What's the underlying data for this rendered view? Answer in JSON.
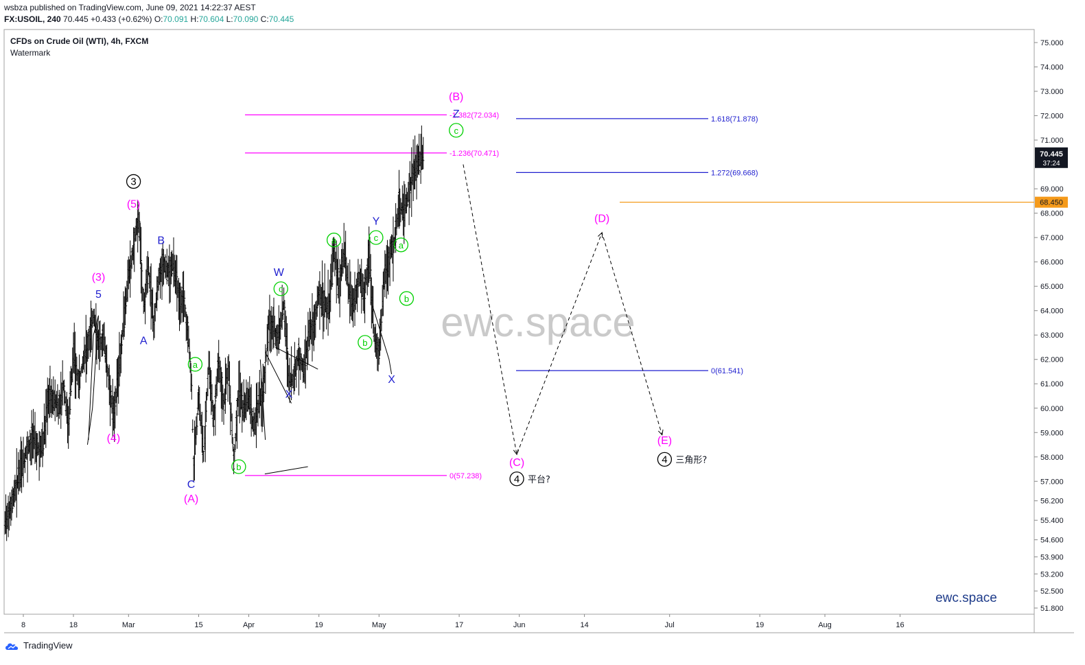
{
  "header": {
    "published": "wsbza published on TradingView.com, June 09, 2021 14:22:37 AEST",
    "symbol": "FX:USOIL, 240",
    "last": "70.445",
    "change": "+0.433 (+0.62%)",
    "o_label": "O:",
    "o": "70.091",
    "h_label": "H:",
    "h": "70.604",
    "l_label": "L:",
    "l": "70.090",
    "c_label": "C:",
    "c": "70.445"
  },
  "legend": {
    "title": "CFDs on Crude Oil (WTI), 4h, FXCM",
    "subtitle": "Watermark"
  },
  "watermark": "ewc.space",
  "brand_label": "ewc.space",
  "footer": {
    "logo_text": "TradingView",
    "logo_icon": "tradingview-cloud-icon"
  },
  "colors": {
    "candle": "#000000",
    "magenta": "#ff00ff",
    "blue": "#1f1fcf",
    "green": "#00d000",
    "orange": "#f59a1b",
    "grid": "#e6e6e6"
  },
  "chart_data": {
    "type": "line",
    "title": "CFDs on Crude Oil (WTI), 4h, FXCM",
    "ylim": [
      51.4,
      75.4
    ],
    "y_ticks": [
      {
        "v": 75.0,
        "label": "75.000"
      },
      {
        "v": 74.0,
        "label": "74.000"
      },
      {
        "v": 73.0,
        "label": "73.000"
      },
      {
        "v": 72.0,
        "label": "72.000"
      },
      {
        "v": 71.0,
        "label": "71.000"
      },
      {
        "v": 69.0,
        "label": "69.000"
      },
      {
        "v": 68.0,
        "label": "68.000"
      },
      {
        "v": 67.0,
        "label": "67.000"
      },
      {
        "v": 66.0,
        "label": "66.000"
      },
      {
        "v": 65.0,
        "label": "65.000"
      },
      {
        "v": 64.0,
        "label": "64.000"
      },
      {
        "v": 63.0,
        "label": "63.000"
      },
      {
        "v": 62.0,
        "label": "62.000"
      },
      {
        "v": 61.0,
        "label": "61.000"
      },
      {
        "v": 60.0,
        "label": "60.000"
      },
      {
        "v": 59.0,
        "label": "59.000"
      },
      {
        "v": 58.0,
        "label": "58.000"
      },
      {
        "v": 57.0,
        "label": "57.000"
      },
      {
        "v": 56.2,
        "label": "56.200"
      },
      {
        "v": 55.4,
        "label": "55.400"
      },
      {
        "v": 54.6,
        "label": "54.600"
      },
      {
        "v": 53.9,
        "label": "53.900"
      },
      {
        "v": 53.2,
        "label": "53.200"
      },
      {
        "v": 52.5,
        "label": "52.500"
      },
      {
        "v": 51.8,
        "label": "51.800"
      }
    ],
    "x_ticks": [
      {
        "d": 0,
        "label": "8"
      },
      {
        "d": 10,
        "label": "18"
      },
      {
        "d": 21,
        "label": "Mar"
      },
      {
        "d": 35,
        "label": "15"
      },
      {
        "d": 45,
        "label": "Apr"
      },
      {
        "d": 59,
        "label": "19"
      },
      {
        "d": 71,
        "label": "May"
      },
      {
        "d": 87,
        "label": "17"
      },
      {
        "d": 99,
        "label": "Jun"
      },
      {
        "d": 112,
        "label": "14"
      },
      {
        "d": 129,
        "label": "Jul"
      },
      {
        "d": 147,
        "label": "19"
      },
      {
        "d": 160,
        "label": "Aug"
      },
      {
        "d": 175,
        "label": "16"
      }
    ],
    "price_path": [
      [
        -4,
        55.0
      ],
      [
        -2,
        56.4
      ],
      [
        0,
        57.8
      ],
      [
        1,
        58.4
      ],
      [
        2,
        58.8
      ],
      [
        3,
        58.3
      ],
      [
        4,
        58.6
      ],
      [
        5,
        60.6
      ],
      [
        7,
        60.1
      ],
      [
        8,
        60.9
      ],
      [
        9,
        59.4
      ],
      [
        10,
        62.3
      ],
      [
        11,
        61.0
      ],
      [
        12,
        62.0
      ],
      [
        13,
        62.8
      ],
      [
        14,
        63.8
      ],
      [
        15,
        62.6
      ],
      [
        16,
        62.9
      ],
      [
        17,
        61.3
      ],
      [
        18,
        59.7
      ],
      [
        19,
        61.4
      ],
      [
        20,
        63.4
      ],
      [
        21,
        65.4
      ],
      [
        22,
        66.6
      ],
      [
        23,
        67.9
      ],
      [
        24,
        64.2
      ],
      [
        25,
        65.7
      ],
      [
        26,
        63.5
      ],
      [
        27,
        65.3
      ],
      [
        28,
        66.1
      ],
      [
        29,
        65.5
      ],
      [
        30,
        65.9
      ],
      [
        31,
        64.6
      ],
      [
        32,
        64.5
      ],
      [
        33,
        62.8
      ],
      [
        33.6,
        60.9
      ],
      [
        34,
        57.7
      ],
      [
        35,
        60.4
      ],
      [
        36,
        58.1
      ],
      [
        37,
        61.9
      ],
      [
        38,
        59.5
      ],
      [
        39,
        62.0
      ],
      [
        40,
        60.2
      ],
      [
        41,
        61.7
      ],
      [
        42,
        57.8
      ],
      [
        43,
        60.8
      ],
      [
        44,
        59.9
      ],
      [
        45,
        60.3
      ],
      [
        46,
        59.2
      ],
      [
        47,
        60.2
      ],
      [
        48,
        60.8
      ],
      [
        49,
        63.6
      ],
      [
        50,
        63.2
      ],
      [
        51,
        62.9
      ],
      [
        52,
        64.3
      ],
      [
        53,
        61.1
      ],
      [
        54,
        61.2
      ],
      [
        55,
        62.2
      ],
      [
        56,
        61.5
      ],
      [
        57,
        63.0
      ],
      [
        58,
        63.4
      ],
      [
        59,
        64.7
      ],
      [
        60,
        64.3
      ],
      [
        61,
        64.1
      ],
      [
        62,
        66.5
      ],
      [
        63,
        65.0
      ],
      [
        64,
        66.3
      ],
      [
        65,
        64.8
      ],
      [
        66,
        64.2
      ],
      [
        67,
        65.4
      ],
      [
        68,
        64.6
      ],
      [
        69,
        66.3
      ],
      [
        70,
        63.1
      ],
      [
        71,
        62.1
      ],
      [
        72,
        65.2
      ],
      [
        73,
        66.2
      ],
      [
        74,
        66.8
      ],
      [
        75,
        68.3
      ],
      [
        76,
        68.0
      ],
      [
        77,
        68.9
      ],
      [
        78,
        69.7
      ],
      [
        79,
        70.1
      ],
      [
        80,
        70.4
      ]
    ],
    "fib_levels": [
      {
        "label": "-1.382(72.034)",
        "v": 72.034,
        "group": "left"
      },
      {
        "label": "-1.236(70.471)",
        "v": 70.471,
        "group": "left"
      },
      {
        "label": "0(57.238)",
        "v": 57.238,
        "group": "left"
      },
      {
        "label": "1.618(71.878)",
        "v": 71.878,
        "group": "right"
      },
      {
        "label": "1.272(69.668)",
        "v": 69.668,
        "group": "right"
      },
      {
        "label": "0(61.541)",
        "v": 61.541,
        "group": "right"
      }
    ],
    "current_price": {
      "v": 70.445,
      "label": "70.445",
      "countdown": "37:24"
    },
    "horizontal_line": {
      "v": 68.45,
      "label": "68.450"
    },
    "wave_labels": [
      {
        "text": "3",
        "circled": true,
        "color": "#000000",
        "d": 22,
        "v": 69.3
      },
      {
        "text": "(5)",
        "color": "#ff00ff",
        "d": 22,
        "v": 68.4
      },
      {
        "text": "B",
        "color": "#1f1fcf",
        "d": 27.5,
        "v": 66.9
      },
      {
        "text": "(3)",
        "color": "#ff00ff",
        "d": 15,
        "v": 65.4
      },
      {
        "text": "5",
        "color": "#1f1fcf",
        "d": 15,
        "v": 64.7
      },
      {
        "text": "A",
        "color": "#1f1fcf",
        "d": 24,
        "v": 62.8
      },
      {
        "text": "(4)",
        "color": "#ff00ff",
        "d": 18,
        "v": 58.8
      },
      {
        "text": "C",
        "color": "#1f1fcf",
        "d": 33.5,
        "v": 56.9
      },
      {
        "text": "(A)",
        "color": "#ff00ff",
        "d": 33.5,
        "v": 56.3
      },
      {
        "text": "a",
        "circled": true,
        "color": "#00d000",
        "d": 34.3,
        "v": 61.8
      },
      {
        "text": "b",
        "circled": true,
        "color": "#00d000",
        "d": 43,
        "v": 57.6
      },
      {
        "text": "W",
        "color": "#1f1fcf",
        "d": 51,
        "v": 65.6
      },
      {
        "text": "c",
        "circled": true,
        "color": "#00d000",
        "d": 51.4,
        "v": 64.9
      },
      {
        "text": "X",
        "color": "#1f1fcf",
        "d": 53,
        "v": 60.6
      },
      {
        "text": "a",
        "circled": true,
        "color": "#00d000",
        "d": 62,
        "v": 66.9
      },
      {
        "text": "Y",
        "color": "#1f1fcf",
        "d": 70.4,
        "v": 67.7
      },
      {
        "text": "c",
        "circled": true,
        "color": "#00d000",
        "d": 70.4,
        "v": 67.0
      },
      {
        "text": "b",
        "circled": true,
        "color": "#00d000",
        "d": 68.2,
        "v": 62.7
      },
      {
        "text": "X",
        "color": "#1f1fcf",
        "d": 73.5,
        "v": 61.2
      },
      {
        "text": "a",
        "circled": true,
        "color": "#00d000",
        "d": 75.4,
        "v": 66.7
      },
      {
        "text": "b",
        "circled": true,
        "color": "#00d000",
        "d": 76.5,
        "v": 64.5
      },
      {
        "text": "(B)",
        "color": "#ff00ff",
        "d": 86.4,
        "v": 72.8
      },
      {
        "text": "Z",
        "color": "#1f1fcf",
        "d": 86.4,
        "v": 72.1
      },
      {
        "text": "c",
        "circled": true,
        "color": "#00d000",
        "d": 86.4,
        "v": 71.4
      },
      {
        "text": "(C)",
        "color": "#ff00ff",
        "d": 98.5,
        "v": 57.8
      },
      {
        "text": "4",
        "circled": true,
        "color": "#000000",
        "d": 98.5,
        "v": 57.1,
        "note": "平台?"
      },
      {
        "text": "(D)",
        "color": "#ff00ff",
        "d": 115.5,
        "v": 67.8
      },
      {
        "text": "(E)",
        "color": "#ff00ff",
        "d": 128,
        "v": 58.7
      },
      {
        "text": "4",
        "circled": true,
        "color": "#000000",
        "d": 128,
        "v": 57.9,
        "note": "三角形?"
      }
    ],
    "projection_path": [
      [
        87.8,
        70.0
      ],
      [
        98.5,
        58.1
      ],
      [
        115.5,
        67.2
      ],
      [
        127.5,
        58.9
      ]
    ]
  }
}
